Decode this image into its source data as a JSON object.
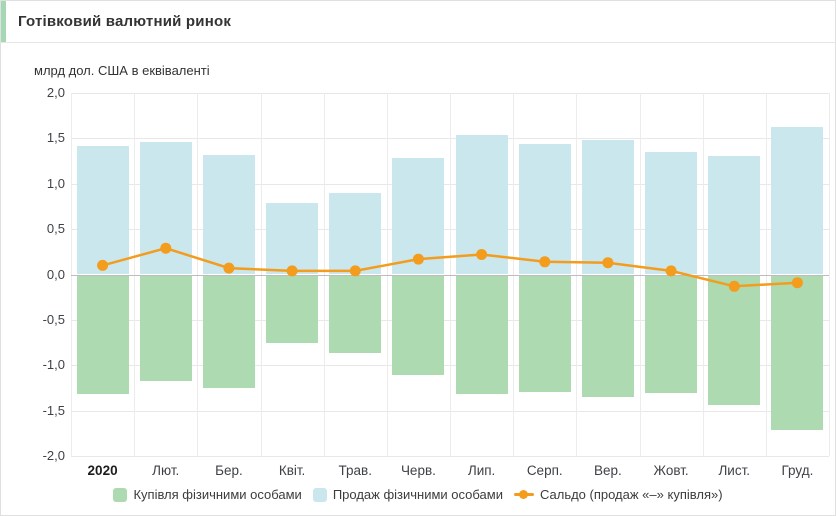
{
  "header": {
    "title": "Готівковий валютний ринок",
    "accent_color": "#a6d7b5"
  },
  "chart_data": {
    "type": "bar",
    "subtype": "diverging-bars-with-line",
    "title": "Готівковий валютний ринок",
    "ylabel": "млрд дол. США в еквіваленті",
    "xlabel": "",
    "categories": [
      "2020",
      "Лют.",
      "Бер.",
      "Квіт.",
      "Трав.",
      "Черв.",
      "Лип.",
      "Серп.",
      "Вер.",
      "Жовт.",
      "Лист.",
      "Груд."
    ],
    "ylim": [
      -2.0,
      2.0
    ],
    "ytick_step": 0.5,
    "ytick_labels": [
      "2,0",
      "1,5",
      "1,0",
      "0,5",
      "0,0",
      "-0,5",
      "-1,0",
      "-1,5",
      "-2,0"
    ],
    "grid": true,
    "legend_position": "bottom",
    "series": [
      {
        "name": "Купівля фізичними особами",
        "type": "bar",
        "direction": "down",
        "color": "#aedab1",
        "values": [
          -1.32,
          -1.17,
          -1.25,
          -0.75,
          -0.86,
          -1.11,
          -1.32,
          -1.3,
          -1.35,
          -1.31,
          -1.44,
          -1.71
        ]
      },
      {
        "name": "Продаж фізичними особами",
        "type": "bar",
        "direction": "up",
        "color": "#c9e7ed",
        "values": [
          1.42,
          1.46,
          1.32,
          0.79,
          0.9,
          1.28,
          1.54,
          1.44,
          1.48,
          1.35,
          1.31,
          1.62
        ]
      },
      {
        "name": "Сальдо (продаж «–» купівля»)",
        "type": "line",
        "color": "#f39c1d",
        "values": [
          0.1,
          0.29,
          0.07,
          0.04,
          0.04,
          0.17,
          0.22,
          0.14,
          0.13,
          0.04,
          -0.13,
          -0.09
        ]
      }
    ],
    "colors": {
      "gridline": "#e8e8e8",
      "zero_line": "#bdbdbd",
      "tick_text": "#3e4247"
    }
  }
}
